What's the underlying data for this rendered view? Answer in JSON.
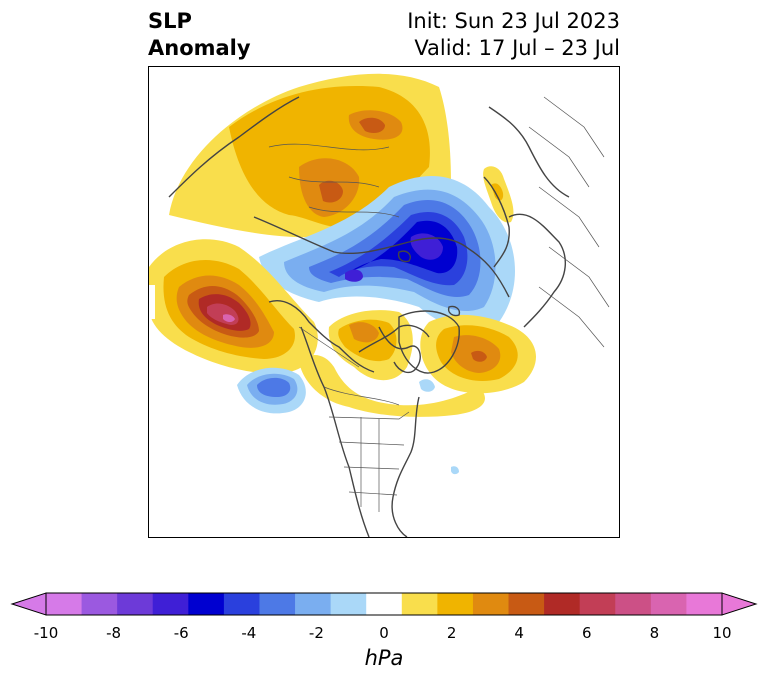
{
  "title": {
    "left_line1": "SLP",
    "left_line2": "Anomaly",
    "right_line1": "Init: Sun 23 Jul 2023",
    "right_line2": "Valid: 17 Jul – 23 Jul"
  },
  "map": {
    "projection": "polar stereographic, North America / Arctic",
    "anomaly_regions": [
      {
        "name": "arctic-siberia-low",
        "sign": "negative",
        "peak_hpa": -7
      },
      {
        "name": "alaska-gulf-low",
        "sign": "negative",
        "peak_hpa": -4
      },
      {
        "name": "siberia-high",
        "sign": "positive",
        "peak_hpa": 4
      },
      {
        "name": "north-pacific-high",
        "sign": "positive",
        "peak_hpa": 8
      },
      {
        "name": "greenland-high",
        "sign": "positive",
        "peak_hpa": 4
      },
      {
        "name": "north-atlantic-high",
        "sign": "positive",
        "peak_hpa": 5
      },
      {
        "name": "eastern-europe-high",
        "sign": "positive",
        "peak_hpa": 2
      }
    ]
  },
  "colorbar": {
    "units": "hPa",
    "min": -10,
    "max": 10,
    "ticks": [
      "-10",
      "-8",
      "-6",
      "-4",
      "-2",
      "0",
      "2",
      "4",
      "6",
      "8",
      "10"
    ],
    "bin_colors": [
      "#d67ae8",
      "#9b59e0",
      "#6d3ad8",
      "#3f1fd6",
      "#0000d0",
      "#2a40dd",
      "#4d79e6",
      "#7aaef0",
      "#aad8f8",
      "#ffffff",
      "#f9de4c",
      "#f0b400",
      "#e08a10",
      "#c85a14",
      "#b02a26",
      "#c23e56",
      "#cc5086",
      "#d964b0",
      "#e878d8"
    ],
    "under_color": "#d67ae8",
    "over_color": "#e878d8"
  }
}
